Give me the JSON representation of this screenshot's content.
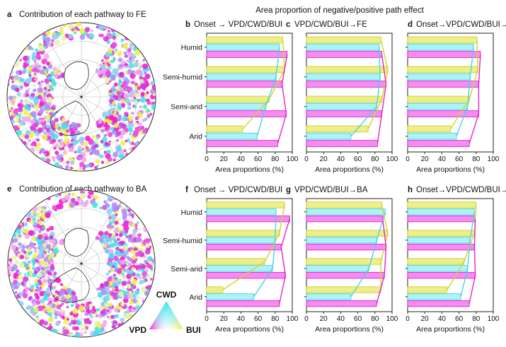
{
  "header": {
    "title": "Area proportion of negative/positive path effect"
  },
  "maps": [
    {
      "letter": "a",
      "title": "Contribution of each pathway to FE"
    },
    {
      "letter": "e",
      "title": "Contribution of each pathway to BA"
    }
  ],
  "ternary_legend": {
    "top": "CWD",
    "left": "VPD",
    "right": "BUI",
    "colors": {
      "top": "#3fe3ee",
      "left": "#f31fcf",
      "right": "#f4f140"
    }
  },
  "series_colors": {
    "CWD": "#47d3e0",
    "VPD": "#e91fd0",
    "BUI": "#cfd32a"
  },
  "bar_colors": {
    "CWD": "#aaf4f8",
    "VPD": "#f38ef0",
    "BUI": "#ecef8a"
  },
  "chart_data": [
    {
      "panel": "b",
      "title": "Onset → VPD/CWD/BUI",
      "type": "bar",
      "orientation": "horizontal",
      "xlabel": "Area proportions (%)",
      "xlim": [
        0,
        100
      ],
      "xticks": [
        "0",
        "20",
        "40",
        "60",
        "80",
        "100"
      ],
      "categories": [
        "Humid",
        "Semi-humid",
        "Semi-arid",
        "Arid"
      ],
      "series": [
        {
          "name": "BUI",
          "values": [
            89,
            91,
            73,
            42
          ]
        },
        {
          "name": "CWD",
          "values": [
            85,
            81,
            69,
            59
          ]
        },
        {
          "name": "VPD",
          "values": [
            94,
            88,
            93,
            83
          ]
        }
      ]
    },
    {
      "panel": "c",
      "title": "VPD/CWD/BUI→FE",
      "type": "bar",
      "orientation": "horizontal",
      "xlabel": "Area proportions (%)",
      "xlim": [
        0,
        100
      ],
      "xticks": [
        "0",
        "20",
        "40",
        "60",
        "80",
        "100"
      ],
      "categories": [
        "Humid",
        "Semi-humid",
        "Semi-arid",
        "Arid"
      ],
      "series": [
        {
          "name": "BUI",
          "values": [
            87,
            95,
            88,
            72
          ]
        },
        {
          "name": "CWD",
          "values": [
            85,
            86,
            82,
            52
          ]
        },
        {
          "name": "VPD",
          "values": [
            88,
            93,
            88,
            83
          ]
        }
      ]
    },
    {
      "panel": "d",
      "title": "Onset→VPD/CWD/BUI→FE",
      "type": "bar",
      "orientation": "horizontal",
      "xlabel": "Area proportions (%)",
      "xlim": [
        0,
        100
      ],
      "xticks": [
        "0",
        "20",
        "40",
        "60",
        "80",
        "100"
      ],
      "categories": [
        "Humid",
        "Semi-humid",
        "Semi-arid",
        "Arid"
      ],
      "series": [
        {
          "name": "BUI",
          "values": [
            81,
            82,
            72,
            50
          ]
        },
        {
          "name": "CWD",
          "values": [
            77,
            73,
            70,
            57
          ]
        },
        {
          "name": "VPD",
          "values": [
            85,
            83,
            83,
            72
          ]
        }
      ]
    },
    {
      "panel": "f",
      "title": "Onset → VPD/CWD/BUI",
      "type": "bar",
      "orientation": "horizontal",
      "xlabel": "Area proportions (%)",
      "xlim": [
        0,
        100
      ],
      "xticks": [
        "0",
        "20",
        "40",
        "60",
        "80",
        "100"
      ],
      "categories": [
        "Humid",
        "Semi-humid",
        "Semi-arid",
        "Arid"
      ],
      "series": [
        {
          "name": "BUI",
          "values": [
            91,
            85,
            68,
            19
          ]
        },
        {
          "name": "CWD",
          "values": [
            81,
            80,
            77,
            55
          ]
        },
        {
          "name": "VPD",
          "values": [
            97,
            87,
            92,
            85
          ]
        }
      ]
    },
    {
      "panel": "g",
      "title": "VPD/CWD/BUI→BA",
      "type": "bar",
      "orientation": "horizontal",
      "xlabel": "Area proportions (%)",
      "xlim": [
        0,
        100
      ],
      "xticks": [
        "0",
        "20",
        "40",
        "60",
        "80",
        "100"
      ],
      "categories": [
        "Humid",
        "Semi-humid",
        "Semi-arid",
        "Arid"
      ],
      "series": [
        {
          "name": "BUI",
          "values": [
            88,
            95,
            87,
            87
          ]
        },
        {
          "name": "CWD",
          "values": [
            92,
            82,
            73,
            52
          ]
        },
        {
          "name": "VPD",
          "values": [
            89,
            93,
            91,
            82
          ]
        }
      ]
    },
    {
      "panel": "h",
      "title": "Onset→VPD/CWD/BUI→BA",
      "type": "bar",
      "orientation": "horizontal",
      "xlabel": "Area proportions (%)",
      "xlim": [
        0,
        100
      ],
      "xticks": [
        "0",
        "20",
        "40",
        "60",
        "80",
        "100"
      ],
      "categories": [
        "Humid",
        "Semi-humid",
        "Semi-arid",
        "Arid"
      ],
      "series": [
        {
          "name": "BUI",
          "values": [
            80,
            78,
            66,
            46
          ]
        },
        {
          "name": "CWD",
          "values": [
            78,
            73,
            70,
            62
          ]
        },
        {
          "name": "VPD",
          "values": [
            79,
            78,
            79,
            72
          ]
        }
      ]
    }
  ]
}
